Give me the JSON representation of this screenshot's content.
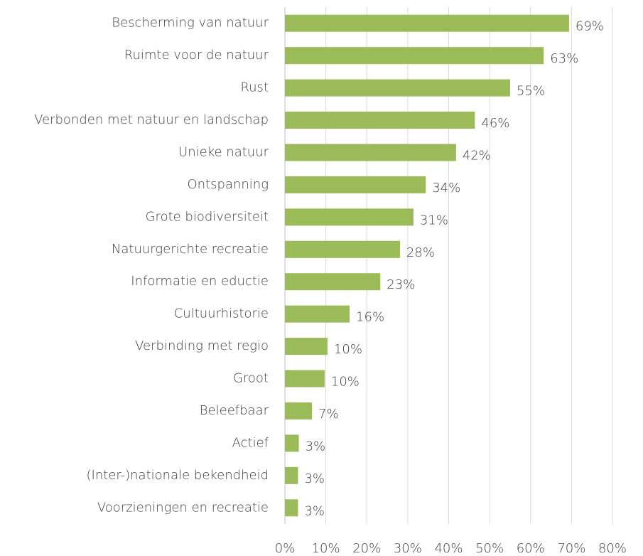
{
  "chart_data": {
    "type": "barh",
    "categories": [
      "Bescherming van natuur",
      "Ruimte voor de natuur",
      "Rust",
      "Verbonden met natuur en landschap",
      "Unieke natuur",
      "Ontspanning",
      "Grote biodiversiteit",
      "Natuurgerichte recreatie",
      "Informatie en eductie",
      "Cultuurhistorie",
      "Verbinding met regio",
      "Groot",
      "Beleefbaar",
      "Actief",
      "(Inter-)nationale bekendheid",
      "Voorzieningen en recreatie"
    ],
    "values": [
      69.4,
      63.2,
      55.0,
      46.4,
      41.8,
      34.4,
      31.4,
      28.1,
      23.3,
      15.8,
      10.4,
      9.7,
      6.6,
      3.4,
      3.2,
      3.2
    ],
    "value_labels": [
      "69%",
      "63%",
      "55%",
      "46%",
      "42%",
      "34%",
      "31%",
      "28%",
      "23%",
      "16%",
      "10%",
      "10%",
      "7%",
      "3%",
      "3%",
      "3%"
    ],
    "color": "#9bbb59",
    "xlim": [
      0,
      80
    ],
    "xticks": [
      {
        "value": 0,
        "label": "0%"
      },
      {
        "value": 10,
        "label": "10%"
      },
      {
        "value": 20,
        "label": "20%"
      },
      {
        "value": 30,
        "label": "30%"
      },
      {
        "value": 40,
        "label": "40%"
      },
      {
        "value": 50,
        "label": "50%"
      },
      {
        "value": 60,
        "label": "60%"
      },
      {
        "value": 70,
        "label": "70%"
      },
      {
        "value": 80,
        "label": "80%"
      }
    ],
    "grid": true
  }
}
